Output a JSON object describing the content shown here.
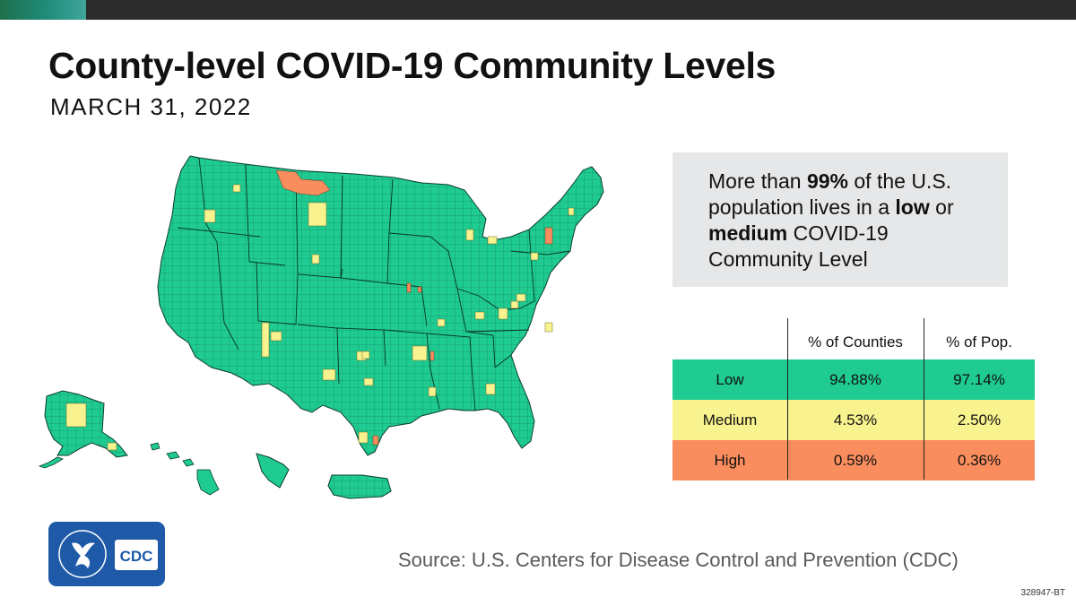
{
  "header": {
    "title": "County-level COVID-19 Community Levels",
    "date": "MARCH 31, 2022"
  },
  "colors": {
    "low": "#1fcb91",
    "medium": "#f8f38e",
    "high": "#f98d5e",
    "callout_bg": "#e6e7e8",
    "logo_blue": "#1e5aa8"
  },
  "callout": {
    "part1": "More than ",
    "bold1": "99%",
    "part2": " of the U.S. population lives in a ",
    "bold2": "low",
    "part3": " or ",
    "bold3": "medium",
    "part4": " COVID-19 Community Level"
  },
  "table": {
    "headers": [
      "",
      "% of Counties",
      "% of Pop."
    ],
    "rows": [
      {
        "level": "Low",
        "counties": "94.88%",
        "pop": "97.14%"
      },
      {
        "level": "Medium",
        "counties": "4.53%",
        "pop": "2.50%"
      },
      {
        "level": "High",
        "counties": "0.59%",
        "pop": "0.36%"
      }
    ]
  },
  "map": {
    "description_regions": [
      "contiguous-us",
      "alaska",
      "hawaii",
      "puerto-rico",
      "guam"
    ]
  },
  "logo": {
    "label": "CDC"
  },
  "footer": {
    "source": "Source: U.S. Centers for Disease Control and Prevention (CDC)",
    "code": "328947-BT"
  }
}
